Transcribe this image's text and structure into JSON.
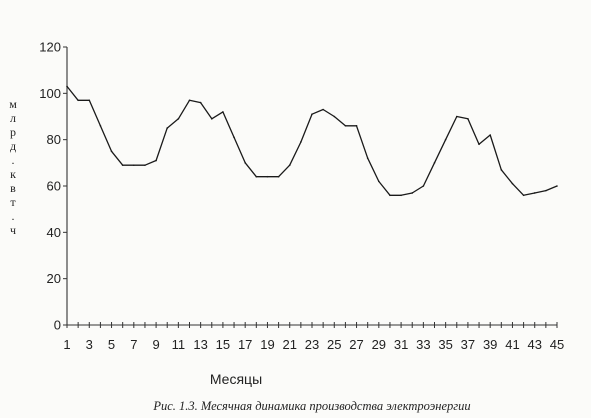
{
  "chart_data": {
    "type": "line",
    "title": "",
    "xlabel": "Месяцы",
    "ylabel": "м л р д . к в т . ч",
    "ylabel_chars": [
      "м",
      "л",
      "р",
      "д",
      ".",
      "к",
      "в",
      "т",
      ".",
      "ч"
    ],
    "caption": "Рис. 1.3. Месячная динамика производства электроэнергии",
    "ylim": [
      0,
      120
    ],
    "yticks": [
      0,
      20,
      40,
      60,
      80,
      100,
      120
    ],
    "xlim": [
      1,
      45
    ],
    "xtick_labels": [
      1,
      3,
      5,
      7,
      9,
      11,
      13,
      15,
      17,
      19,
      21,
      23,
      25,
      27,
      29,
      31,
      33,
      35,
      37,
      39,
      41,
      43,
      45
    ],
    "grid": false,
    "x": [
      1,
      2,
      3,
      4,
      5,
      6,
      7,
      8,
      9,
      10,
      11,
      12,
      13,
      14,
      15,
      16,
      17,
      18,
      19,
      20,
      21,
      22,
      23,
      24,
      25,
      26,
      27,
      28,
      29,
      30,
      31,
      32,
      33,
      34,
      35,
      36,
      37,
      38,
      39,
      40,
      41,
      42,
      43,
      44,
      45
    ],
    "values": [
      103,
      97,
      97,
      86,
      75,
      69,
      69,
      69,
      71,
      85,
      89,
      97,
      96,
      89,
      92,
      81,
      70,
      64,
      64,
      64,
      69,
      79,
      91,
      93,
      90,
      86,
      86,
      72,
      62,
      56,
      56,
      57,
      60,
      70,
      80,
      90,
      89,
      78,
      82,
      67,
      61,
      56,
      57,
      58,
      60
    ]
  }
}
